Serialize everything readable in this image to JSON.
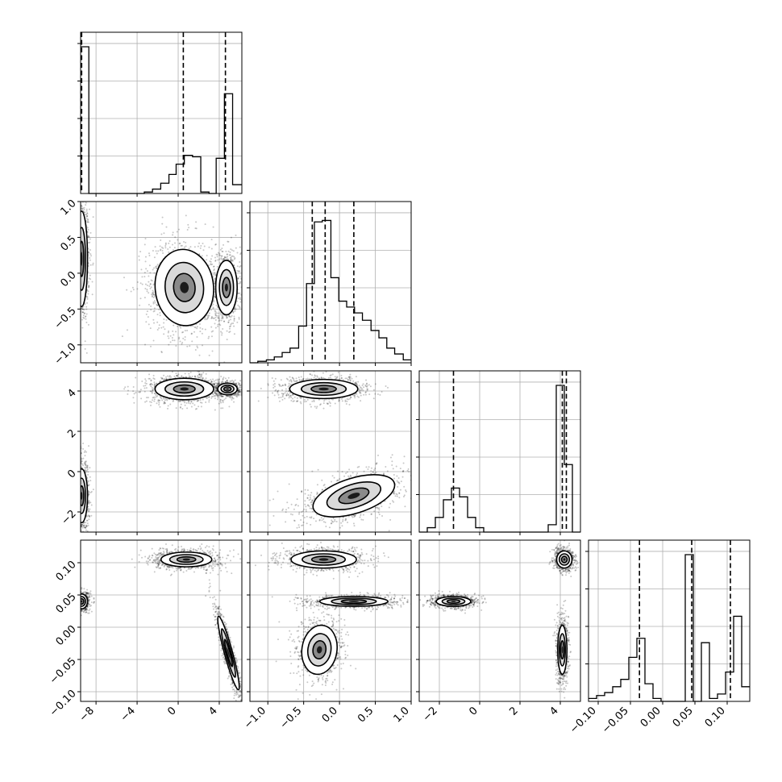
{
  "chart_data": {
    "type": "corner",
    "parameters": [
      {
        "range": [
          -9.5,
          6.2
        ],
        "ticks": [
          -8,
          -4,
          0,
          4
        ],
        "tick_labels": [
          "−8",
          "−4",
          "0",
          "4"
        ],
        "quantiles": [
          -9.4,
          0.5,
          4.6
        ]
      },
      {
        "range": [
          -1.25,
          1.0
        ],
        "ticks": [
          -1.0,
          -0.5,
          0.0,
          0.5,
          1.0
        ],
        "tick_labels": [
          "−1.0",
          "−0.5",
          "0.0",
          "0.5",
          "1.0"
        ],
        "quantiles": [
          -0.38,
          -0.2,
          0.2
        ]
      },
      {
        "range": [
          -3.0,
          5.0
        ],
        "ticks": [
          -2,
          0,
          2,
          4
        ],
        "tick_labels": [
          "−2",
          "0",
          "2",
          "4"
        ],
        "quantiles": [
          -1.3,
          4.1,
          4.3
        ]
      },
      {
        "range": [
          -0.115,
          0.135
        ],
        "ticks": [
          -0.1,
          -0.05,
          0.0,
          0.05,
          0.1
        ],
        "tick_labels": [
          "−0.10",
          "−0.05",
          "0.00",
          "0.05",
          "0.10"
        ],
        "quantiles": [
          -0.036,
          0.045,
          0.105
        ]
      }
    ],
    "histograms": [
      {
        "param": 0,
        "bins": [
          -9.5,
          -8.7,
          -8.0,
          -7.2,
          -6.4,
          -5.6,
          -4.8,
          -4.1,
          -3.3,
          -2.5,
          -1.7,
          -0.9,
          -0.2,
          0.6,
          1.4,
          2.2,
          3.0,
          3.7,
          4.5,
          5.3,
          6.2
        ],
        "counts": [
          1.0,
          0,
          0,
          0,
          0,
          0,
          0,
          0,
          0.01,
          0.03,
          0.07,
          0.13,
          0.2,
          0.26,
          0.25,
          0.01,
          0.0,
          0.24,
          0.68,
          0.06
        ]
      },
      {
        "param": 1,
        "bins": [
          -1.25,
          -1.14,
          -1.02,
          -0.91,
          -0.8,
          -0.69,
          -0.57,
          -0.46,
          -0.35,
          -0.24,
          -0.12,
          -0.01,
          0.1,
          0.21,
          0.32,
          0.44,
          0.55,
          0.66,
          0.77,
          0.89,
          1.0
        ],
        "counts": [
          0.0,
          0.01,
          0.02,
          0.04,
          0.07,
          0.1,
          0.25,
          0.54,
          0.96,
          0.97,
          0.58,
          0.42,
          0.38,
          0.34,
          0.29,
          0.22,
          0.17,
          0.1,
          0.06,
          0.02
        ]
      },
      {
        "param": 2,
        "bins": [
          -3.0,
          -2.6,
          -2.2,
          -1.8,
          -1.4,
          -1.0,
          -0.6,
          -0.2,
          0.2,
          0.6,
          1.0,
          1.4,
          1.8,
          2.2,
          2.6,
          3.0,
          3.4,
          3.8,
          4.2,
          4.6,
          5.0
        ],
        "counts": [
          0.0,
          0.03,
          0.1,
          0.22,
          0.3,
          0.24,
          0.1,
          0.03,
          0.0,
          0,
          0,
          0,
          0,
          0,
          0,
          0,
          0.05,
          1.0,
          0.46,
          0.0
        ]
      },
      {
        "param": 3,
        "bins": [
          -0.115,
          -0.1025,
          -0.09,
          -0.0775,
          -0.065,
          -0.0525,
          -0.04,
          -0.0275,
          -0.015,
          -0.0025,
          0.01,
          0.0225,
          0.035,
          0.0475,
          0.06,
          0.0725,
          0.085,
          0.0975,
          0.11,
          0.1225,
          0.135
        ],
        "counts": [
          0.02,
          0.04,
          0.06,
          0.1,
          0.15,
          0.3,
          0.43,
          0.12,
          0.02,
          0.0,
          0.0,
          0.0,
          1.0,
          0.0,
          0.4,
          0.02,
          0.05,
          0.2,
          0.58,
          0.1
        ]
      }
    ],
    "pairs": [
      {
        "x": 0,
        "y": 1,
        "modes": [
          {
            "cx": -9.4,
            "cy": 0.2,
            "sx": 0.3,
            "sy": 0.35,
            "rho": 0.0,
            "w": 1.0
          },
          {
            "cx": 0.6,
            "cy": -0.2,
            "sx": 1.5,
            "sy": 0.28,
            "rho": -0.05,
            "w": 1.2
          },
          {
            "cx": 4.7,
            "cy": -0.2,
            "sx": 0.55,
            "sy": 0.2,
            "rho": 0.0,
            "w": 0.9
          }
        ]
      },
      {
        "x": 0,
        "y": 2,
        "modes": [
          {
            "cx": -9.4,
            "cy": -1.2,
            "sx": 0.3,
            "sy": 0.7,
            "rho": 0.0,
            "w": 1.0
          },
          {
            "cx": 0.6,
            "cy": 4.1,
            "sx": 1.5,
            "sy": 0.28,
            "rho": 0.0,
            "w": 1.2
          },
          {
            "cx": 4.8,
            "cy": 4.1,
            "sx": 0.5,
            "sy": 0.15,
            "rho": 0.0,
            "w": 0.9
          }
        ]
      },
      {
        "x": 0,
        "y": 3,
        "modes": [
          {
            "cx": -9.4,
            "cy": 0.04,
            "sx": 0.3,
            "sy": 0.006,
            "rho": 0.0,
            "w": 1.0
          },
          {
            "cx": 0.8,
            "cy": 0.105,
            "sx": 1.3,
            "sy": 0.006,
            "rho": 0.0,
            "w": 1.2
          },
          {
            "cx": 4.9,
            "cy": -0.04,
            "sx": 0.55,
            "sy": 0.03,
            "rho": -0.92,
            "w": 0.9
          }
        ]
      },
      {
        "x": 1,
        "y": 2,
        "modes": [
          {
            "cx": -0.22,
            "cy": 4.1,
            "sx": 0.25,
            "sy": 0.25,
            "rho": 0.0,
            "w": 1.0
          },
          {
            "cx": 0.2,
            "cy": -1.2,
            "sx": 0.3,
            "sy": 0.55,
            "rho": 0.5,
            "w": 1.0
          }
        ]
      },
      {
        "x": 1,
        "y": 3,
        "modes": [
          {
            "cx": -0.22,
            "cy": 0.105,
            "sx": 0.24,
            "sy": 0.007,
            "rho": 0.0,
            "w": 1.0
          },
          {
            "cx": 0.2,
            "cy": 0.04,
            "sx": 0.25,
            "sy": 0.004,
            "rho": 0.0,
            "w": 1.0
          },
          {
            "cx": -0.28,
            "cy": -0.035,
            "sx": 0.13,
            "sy": 0.02,
            "rho": 0.1,
            "w": 1.0
          }
        ]
      },
      {
        "x": 2,
        "y": 3,
        "modes": [
          {
            "cx": 4.2,
            "cy": 0.105,
            "sx": 0.2,
            "sy": 0.007,
            "rho": 0.0,
            "w": 1.0
          },
          {
            "cx": -1.3,
            "cy": 0.04,
            "sx": 0.45,
            "sy": 0.004,
            "rho": 0.0,
            "w": 1.0
          },
          {
            "cx": 4.1,
            "cy": -0.035,
            "sx": 0.12,
            "sy": 0.02,
            "rho": 0.0,
            "w": 1.0
          }
        ]
      }
    ],
    "grid": true,
    "xlabel": "",
    "ylabel": "",
    "title": ""
  }
}
